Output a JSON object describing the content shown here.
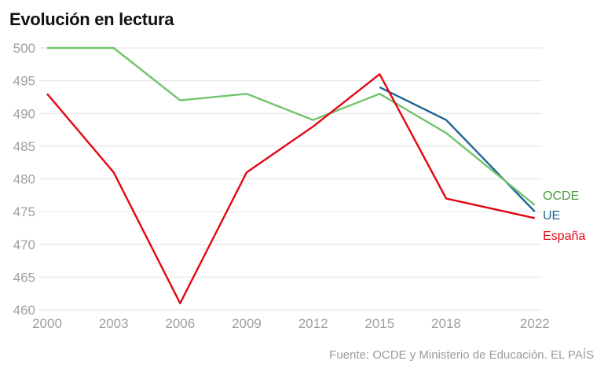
{
  "chart_data": {
    "type": "line",
    "title": "Evolución en lectura",
    "xlabel": "",
    "ylabel": "",
    "x": [
      2000,
      2003,
      2006,
      2009,
      2012,
      2015,
      2018,
      2022
    ],
    "x_tick_labels": [
      "2000",
      "2003",
      "2006",
      "2009",
      "2012",
      "2015",
      "2018",
      "2022"
    ],
    "y_ticks": [
      460,
      465,
      470,
      475,
      480,
      485,
      490,
      495,
      500
    ],
    "ylim": [
      460,
      500
    ],
    "grid": true,
    "legend": "right-end inline labels",
    "series": [
      {
        "name": "OCDE",
        "color": "#72c56b",
        "label_color": "#4e9a42",
        "values": [
          500,
          500,
          492,
          493,
          489,
          493,
          487,
          476
        ]
      },
      {
        "name": "UE",
        "color": "#1c6394",
        "label_color": "#1c6394",
        "values": [
          null,
          null,
          null,
          null,
          null,
          494,
          489,
          475
        ]
      },
      {
        "name": "España",
        "color": "#e30613",
        "label_color": "#e30613",
        "values": [
          493,
          481,
          461,
          481,
          488,
          496,
          477,
          474
        ]
      }
    ],
    "source": "Fuente: OCDE y Ministerio de Educación. EL PAÍS"
  }
}
